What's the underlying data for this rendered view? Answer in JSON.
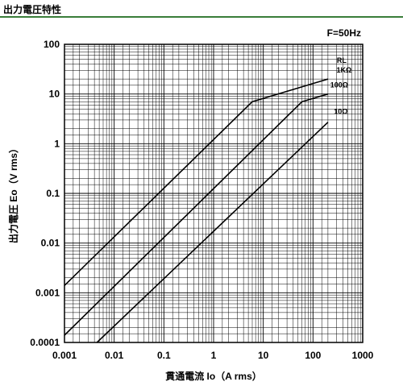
{
  "header": {
    "title": "出力電圧特性"
  },
  "chart_data": {
    "type": "line",
    "xlabel": "貫通電流 Io（A rms）",
    "ylabel": "出力電圧 Eo（V rms）",
    "xscale": "log",
    "yscale": "log",
    "xlim": [
      0.001,
      1000
    ],
    "ylim": [
      0.0001,
      100
    ],
    "xticks": [
      "0.001",
      "0.01",
      "0.1",
      "1",
      "10",
      "100",
      "1000"
    ],
    "yticks": [
      "0.0001",
      "0.001",
      "0.01",
      "0.1",
      "1",
      "10",
      "100"
    ],
    "grid": true,
    "annotations": {
      "frequency": "F=50Hz",
      "rl_label": "RL"
    },
    "series": [
      {
        "name": "1KΩ",
        "points": [
          [
            0.001,
            0.0014
          ],
          [
            6,
            7
          ],
          [
            200,
            20
          ]
        ]
      },
      {
        "name": "100Ω",
        "points": [
          [
            0.001,
            0.00014
          ],
          [
            60,
            7
          ],
          [
            200,
            10
          ]
        ]
      },
      {
        "name": "10Ω",
        "points": [
          [
            0.0045,
            0.0001
          ],
          [
            200,
            2.7
          ]
        ]
      }
    ]
  }
}
